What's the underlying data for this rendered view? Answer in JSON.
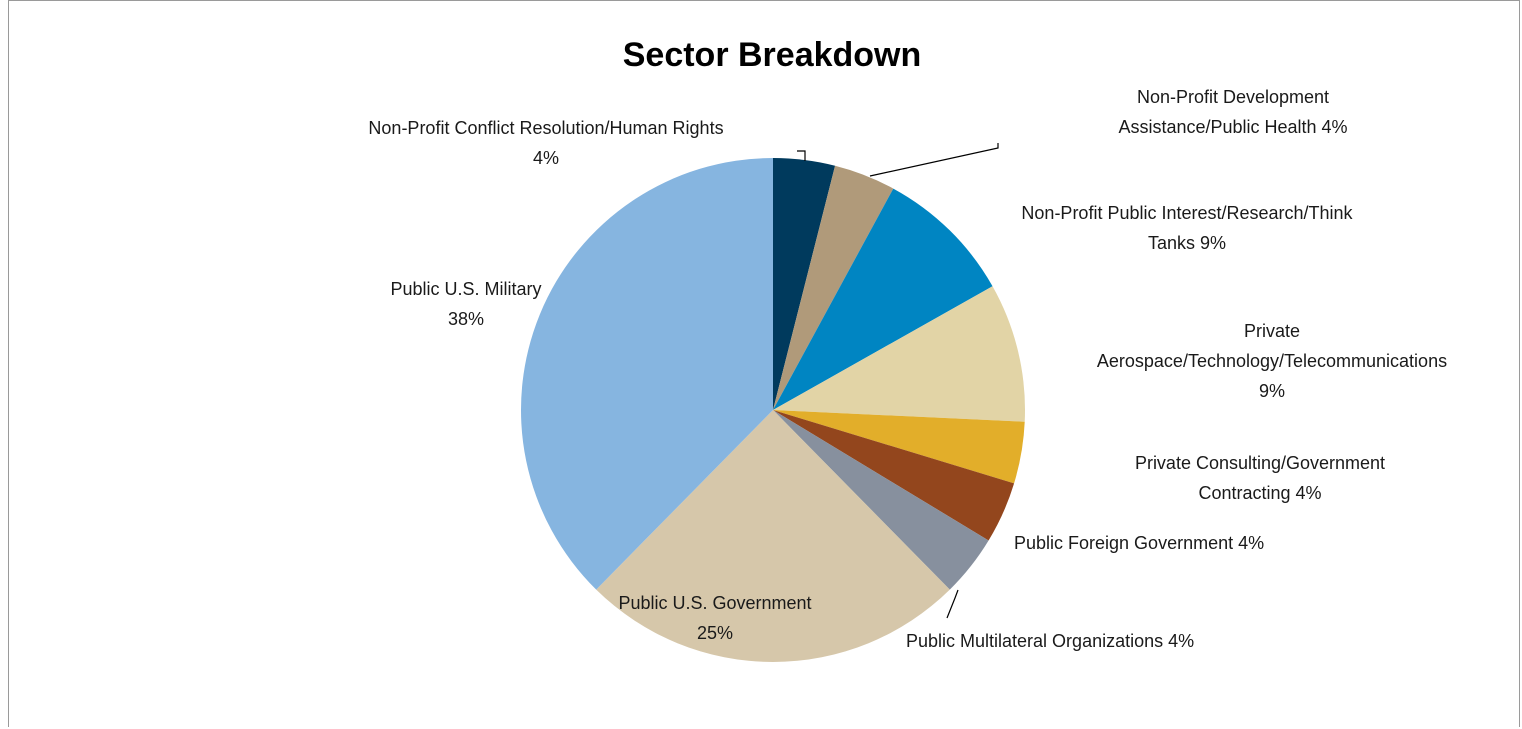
{
  "chart_data": {
    "type": "pie",
    "title": "Sector Breakdown",
    "start_angle_deg": 0,
    "direction": "clockwise",
    "slices": [
      {
        "label": "Non-Profit Conflict Resolution/Human Rights",
        "value": 4,
        "percent_label": "4%",
        "color": "#003A5D"
      },
      {
        "label": "Non-Profit Development Assistance/Public Health",
        "value": 4,
        "percent_label": "4%",
        "color": "#B09A7A"
      },
      {
        "label": "Non-Profit Public Interest/Research/Think Tanks",
        "value": 9,
        "percent_label": "9%",
        "color": "#0085C2"
      },
      {
        "label": "Private Aerospace/Technology/Telecommunications",
        "value": 9,
        "percent_label": "9%",
        "color": "#E2D4A6"
      },
      {
        "label": "Private Consulting/Government Contracting",
        "value": 4,
        "percent_label": "4%",
        "color": "#E2AE2A"
      },
      {
        "label": "Public Foreign Government",
        "value": 4,
        "percent_label": "4%",
        "color": "#93461D"
      },
      {
        "label": "Public Multilateral Organizations",
        "value": 4,
        "percent_label": "4%",
        "color": "#87909E"
      },
      {
        "label": "Public U.S. Government",
        "value": 25,
        "percent_label": "25%",
        "color": "#D6C7AA"
      },
      {
        "label": "Public U.S. Military",
        "value": 38,
        "percent_label": "38%",
        "color": "#86B5E0"
      }
    ],
    "data_labels": [
      {
        "lines": [
          "Non-Profit Conflict Resolution/Human Rights",
          "4%"
        ]
      },
      {
        "lines": [
          "Non-Profit Development",
          "Assistance/Public Health 4%"
        ]
      },
      {
        "lines": [
          "Non-Profit Public Interest/Research/Think",
          "Tanks 9%"
        ]
      },
      {
        "lines": [
          "Private",
          "Aerospace/Technology/Telecommunications",
          "9%"
        ]
      },
      {
        "lines": [
          "Private Consulting/Government",
          "Contracting 4%"
        ]
      },
      {
        "lines": [
          "Public Foreign Government 4%"
        ]
      },
      {
        "lines": [
          "Public Multilateral Organizations  4%"
        ]
      },
      {
        "lines": [
          "Public U.S. Government",
          "25%"
        ]
      },
      {
        "lines": [
          "Public U.S. Military",
          "38%"
        ]
      }
    ]
  }
}
